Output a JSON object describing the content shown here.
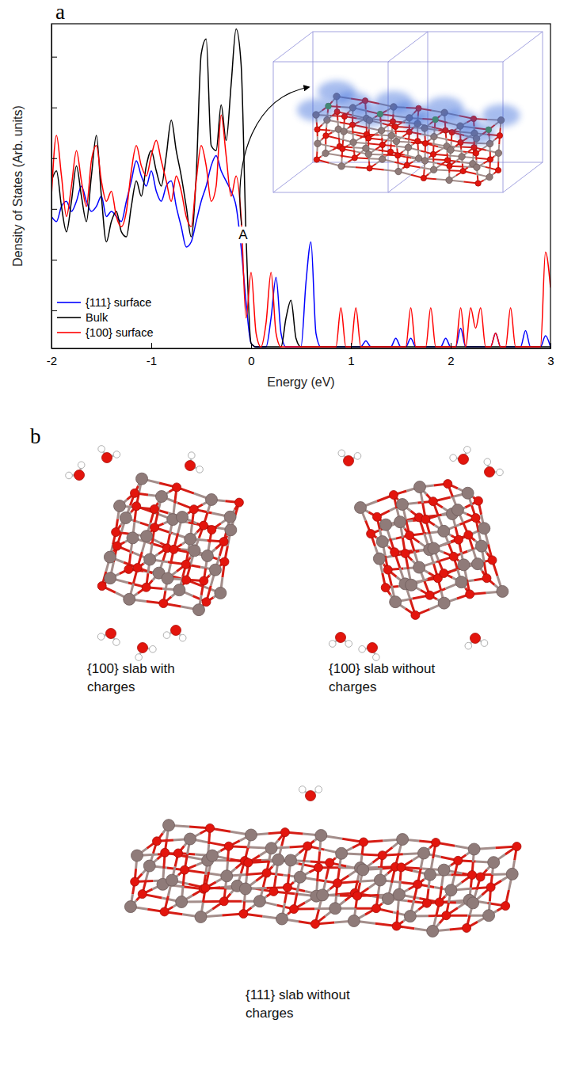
{
  "chart_data": {
    "type": "line",
    "x_label": "Energy (eV)",
    "y_label": "Density of States (Arb. units)",
    "x": [
      -2,
      -1.95,
      -1.9,
      -1.85,
      -1.8,
      -1.75,
      -1.7,
      -1.65,
      -1.6,
      -1.55,
      -1.5,
      -1.45,
      -1.4,
      -1.35,
      -1.3,
      -1.25,
      -1.2,
      -1.15,
      -1.1,
      -1.05,
      -1,
      -0.95,
      -0.9,
      -0.85,
      -0.8,
      -0.75,
      -0.7,
      -0.65,
      -0.6,
      -0.55,
      -0.5,
      -0.45,
      -0.4,
      -0.35,
      -0.3,
      -0.25,
      -0.2,
      -0.15,
      -0.1,
      -0.05,
      0,
      0.05,
      0.1,
      0.15,
      0.2,
      0.25,
      0.3,
      0.35,
      0.4,
      0.45,
      0.5,
      0.55,
      0.6,
      0.65,
      0.7,
      0.75,
      0.8,
      0.85,
      0.9,
      0.95,
      1,
      1.05,
      1.1,
      1.15,
      1.2,
      1.25,
      1.3,
      1.35,
      1.4,
      1.45,
      1.5,
      1.55,
      1.6,
      1.65,
      1.7,
      1.75,
      1.8,
      1.85,
      1.9,
      1.95,
      2,
      2.05,
      2.1,
      2.15,
      2.2,
      2.25,
      2.3,
      2.35,
      2.4,
      2.45,
      2.5,
      2.55,
      2.6,
      2.65,
      2.7,
      2.75,
      2.8,
      2.85,
      2.9,
      2.95,
      3
    ],
    "series": [
      {
        "name": "{111} surface",
        "color": "#0000ff",
        "values": [
          2.6,
          2.5,
          2.8,
          2.9,
          2.7,
          2.9,
          3.2,
          2.9,
          2.7,
          2.8,
          3.0,
          2.6,
          2.7,
          2.6,
          2.5,
          2.9,
          3.3,
          3.7,
          3.4,
          3.2,
          3.5,
          3.1,
          2.9,
          3.2,
          3.3,
          2.8,
          2.4,
          2.0,
          2.1,
          2.5,
          2.9,
          3.2,
          3.6,
          3.8,
          3.5,
          3.3,
          3.1,
          2.8,
          2.0,
          0.9,
          0.1,
          0.03,
          0.03,
          0.03,
          0.6,
          1.4,
          0.3,
          0.03,
          0.03,
          0.03,
          0.03,
          1.3,
          2.1,
          0.3,
          0.03,
          0.03,
          0.03,
          0.03,
          0.03,
          0.03,
          0.03,
          0.03,
          0.03,
          0.15,
          0.03,
          0.03,
          0.03,
          0.03,
          0.03,
          0.2,
          0.03,
          0.03,
          0.2,
          0.03,
          0.03,
          0.03,
          0.03,
          0.03,
          0.03,
          0.2,
          0.03,
          0.03,
          0.4,
          0.03,
          0.03,
          0.03,
          0.03,
          0.03,
          0.03,
          0.3,
          0.03,
          0.03,
          0.03,
          0.03,
          0.03,
          0.35,
          0.03,
          0.03,
          0.03,
          0.25,
          0.03
        ]
      },
      {
        "name": "Bulk",
        "color": "#000000",
        "values": [
          3.3,
          3.5,
          2.8,
          2.3,
          2.9,
          3.6,
          3.0,
          2.5,
          3.4,
          4.2,
          3.0,
          2.1,
          2.5,
          2.7,
          2.3,
          2.2,
          2.8,
          3.3,
          3.0,
          3.6,
          3.9,
          3.5,
          3.2,
          3.8,
          4.5,
          3.9,
          3.4,
          2.8,
          2.2,
          3.4,
          5.8,
          6.1,
          4.0,
          3.9,
          4.8,
          4.1,
          5.2,
          6.3,
          5.6,
          2.2,
          0.1,
          0.03,
          0.03,
          0.03,
          0.03,
          0.03,
          0.03,
          0.6,
          0.95,
          0.2,
          0.03,
          0.03,
          0.03,
          0.03,
          0.03,
          0.03,
          0.03,
          0.03,
          0.03,
          0.03,
          0.03,
          0.03,
          0.03,
          0.03,
          0.03,
          0.03,
          0.03,
          0.03,
          0.03,
          0.03,
          0.03,
          0.03,
          0.03,
          0.03,
          0.03,
          0.03,
          0.03,
          0.03,
          0.03,
          0.03,
          0.03,
          0.03,
          0.03,
          0.03,
          0.03,
          0.03,
          0.03,
          0.03,
          0.03,
          0.03,
          0.03,
          0.03,
          0.03,
          0.03,
          0.03,
          0.03,
          0.03,
          0.03,
          0.03,
          0.03,
          0.03
        ]
      },
      {
        "name": "{100} surface",
        "color": "#ff0000",
        "values": [
          3.0,
          4.2,
          3.4,
          2.6,
          3.2,
          3.9,
          3.3,
          2.8,
          3.7,
          4.0,
          3.3,
          2.9,
          3.1,
          2.6,
          2.4,
          2.7,
          3.5,
          4.0,
          3.6,
          3.4,
          3.8,
          4.1,
          3.7,
          3.3,
          2.9,
          3.4,
          3.1,
          2.6,
          2.4,
          3.3,
          4.0,
          3.6,
          2.9,
          3.2,
          4.6,
          3.8,
          3.0,
          3.4,
          2.6,
          0.6,
          1.5,
          0.3,
          0.03,
          0.5,
          1.5,
          0.3,
          0.03,
          0.03,
          0.03,
          0.03,
          0.03,
          0.03,
          0.03,
          0.03,
          0.03,
          0.03,
          0.03,
          0.03,
          0.8,
          0.03,
          0.03,
          0.8,
          0.03,
          0.03,
          0.03,
          0.03,
          0.03,
          0.03,
          0.03,
          0.03,
          0.03,
          0.03,
          0.8,
          0.03,
          0.03,
          0.03,
          0.8,
          0.03,
          0.03,
          0.03,
          0.03,
          0.03,
          0.8,
          0.03,
          0.8,
          0.4,
          0.8,
          0.03,
          0.03,
          0.3,
          0.03,
          0.03,
          0.8,
          0.03,
          0.03,
          0.03,
          0.03,
          0.03,
          0.03,
          1.9,
          1.2
        ]
      }
    ],
    "xlim": [
      -2,
      3
    ],
    "xticks": [
      -2,
      -1,
      0,
      1,
      2,
      3
    ],
    "ylim": [
      0,
      6.4
    ],
    "yticks": [
      0.75,
      1.75,
      2.75,
      3.75,
      4.75,
      5.75
    ],
    "tick_labels": "x",
    "legend": "lower left",
    "annotations": [
      {
        "text": "A",
        "x": -0.08,
        "y": 2.15
      }
    ]
  },
  "panel_labels": [
    "a",
    "b"
  ],
  "structures": [
    {
      "caption": "{100} slab with charges"
    },
    {
      "caption": "{100} slab without charges"
    },
    {
      "caption": "{111} slab without charges"
    }
  ]
}
